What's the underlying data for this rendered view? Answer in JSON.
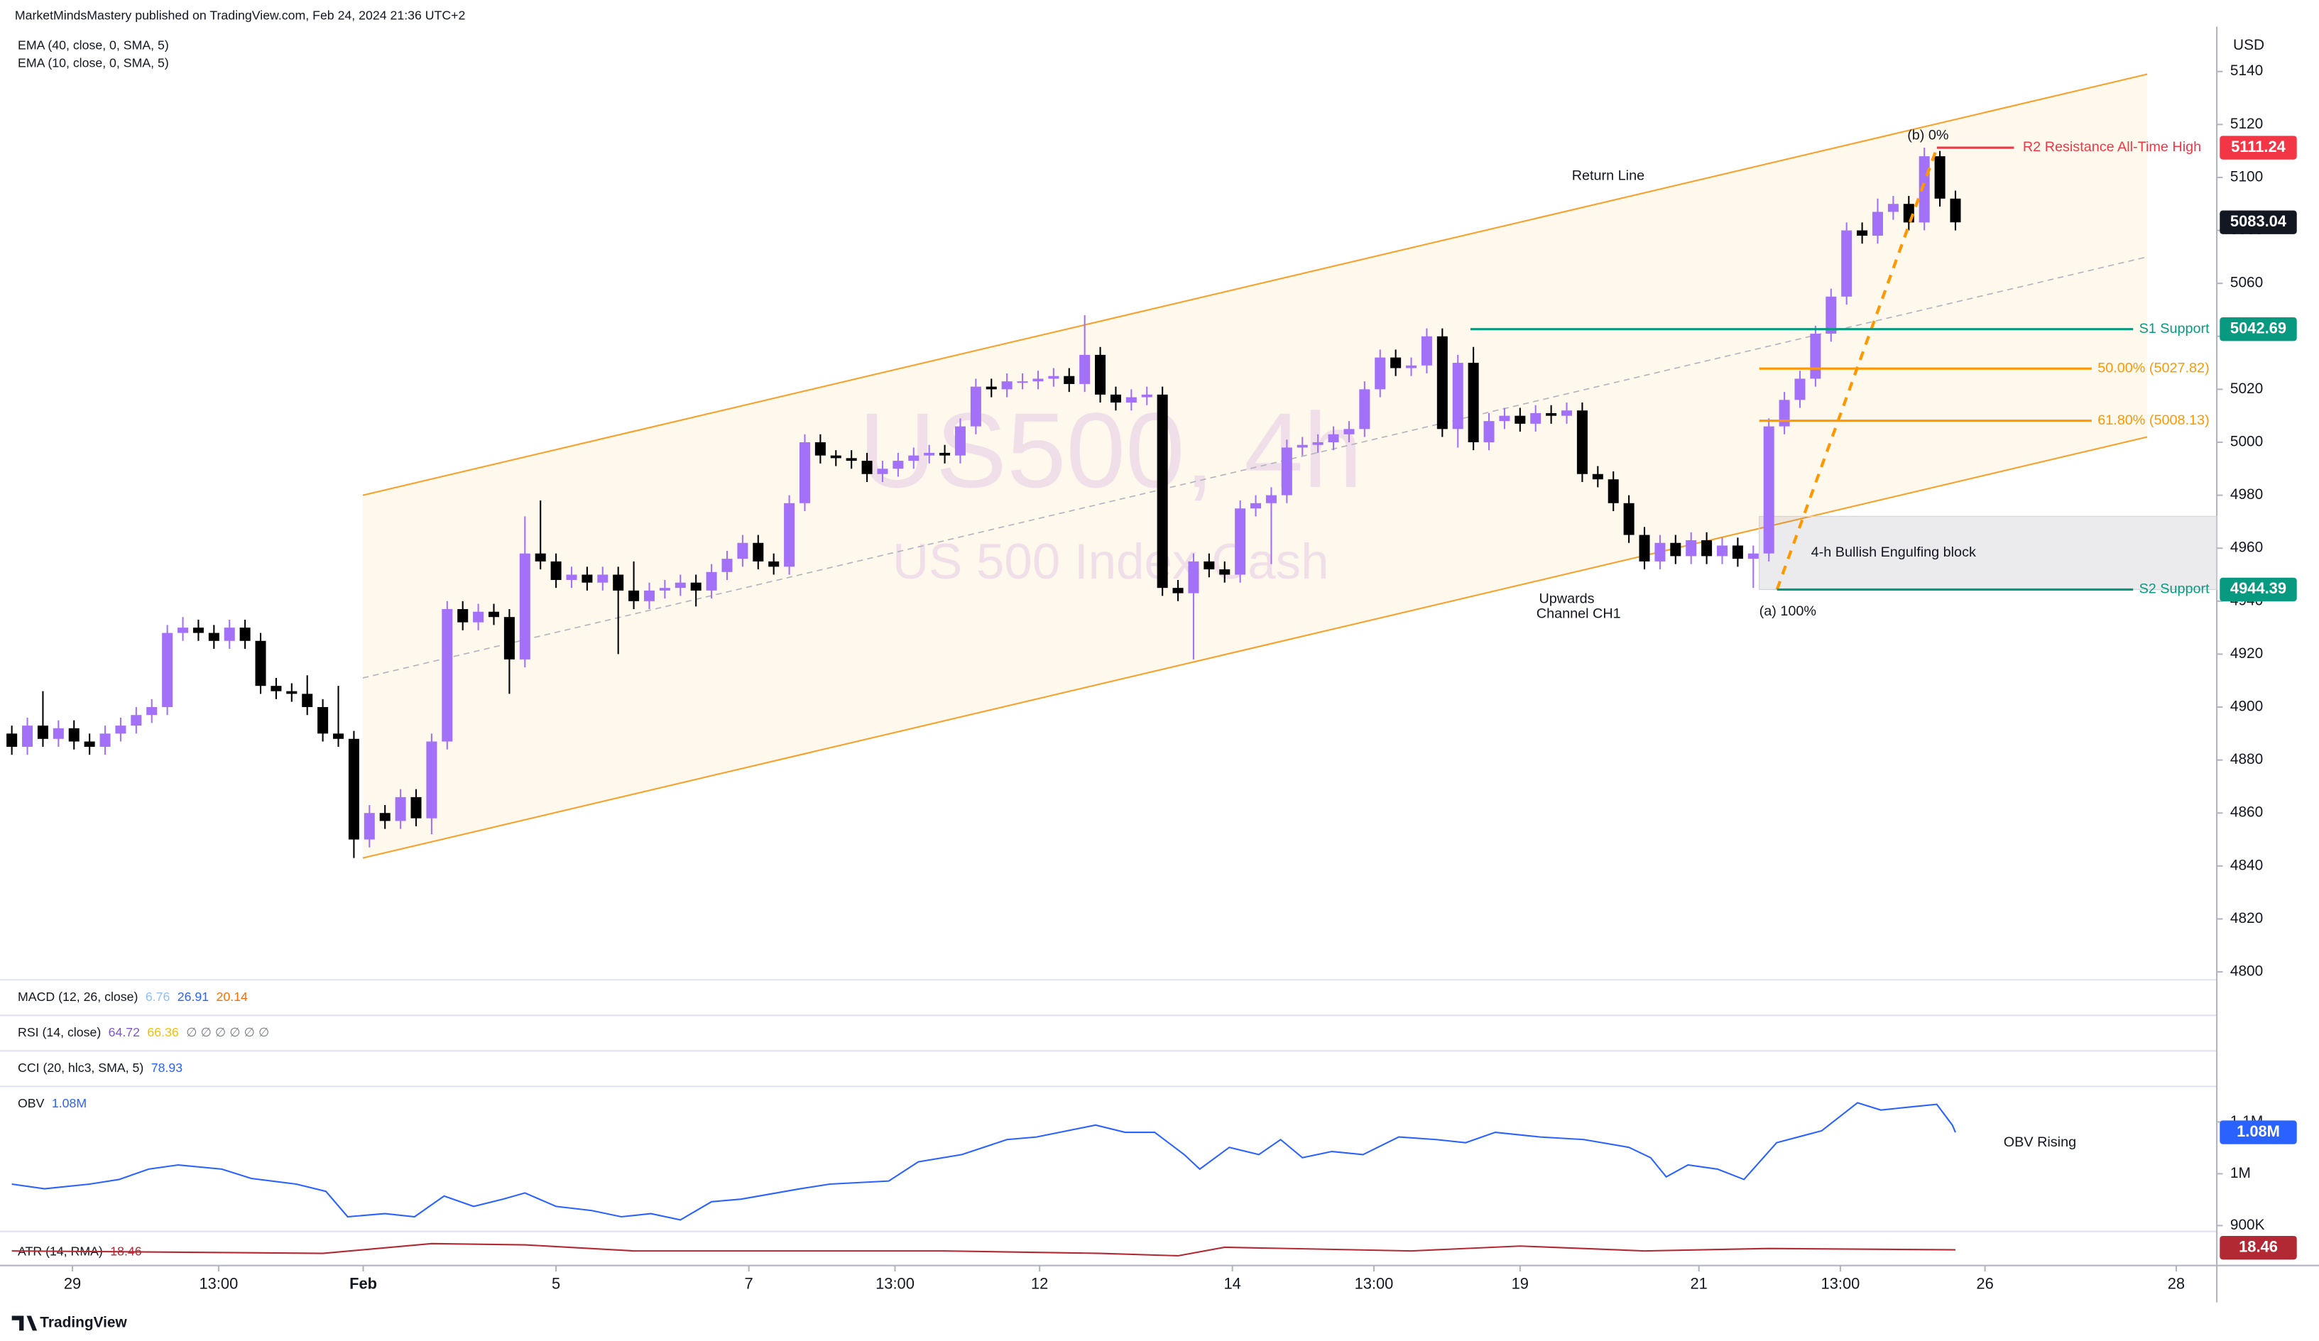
{
  "header": {
    "publisher": "MarketMindsMastery published on TradingView.com, Feb 24, 2024 21:36 UTC+2",
    "indicators": [
      "EMA (40, close, 0, SMA, 5)",
      "EMA (10, close, 0, SMA, 5)"
    ]
  },
  "chart_data": {
    "type": "candlestick",
    "title": "US500, 4h",
    "subtitle": "US 500 Index Cash",
    "currency": "USD",
    "grid": false,
    "up_color": "#a371f7",
    "down_color": "#000000",
    "xlim": [
      -0.76,
      141.81
    ],
    "xticks": [
      {
        "value": 3.9,
        "label": "29"
      },
      {
        "value": 13.3,
        "label": "13:00"
      },
      {
        "value": 22.6,
        "label": "Feb"
      },
      {
        "value": 35,
        "label": "5"
      },
      {
        "value": 47.4,
        "label": "7"
      },
      {
        "value": 56.8,
        "label": "13:00"
      },
      {
        "value": 66.1,
        "label": "12"
      },
      {
        "value": 78.5,
        "label": "14"
      },
      {
        "value": 87.6,
        "label": "13:00"
      },
      {
        "value": 97,
        "label": "19"
      },
      {
        "value": 108.5,
        "label": "21"
      },
      {
        "value": 117.6,
        "label": "13:00"
      },
      {
        "value": 126.9,
        "label": "26"
      },
      {
        "value": 139.2,
        "label": "28"
      }
    ],
    "ylim": [
      4797,
      5167
    ],
    "yticks": [
      4800,
      4820,
      4840,
      4860,
      4880,
      4900,
      4920,
      4940,
      4960,
      4980,
      5000,
      5020,
      5040,
      5060,
      5080,
      5100,
      5120,
      5140
    ],
    "open": [
      4890,
      4885,
      4893,
      4888,
      4892,
      4887,
      4885,
      4890,
      4893,
      4897,
      4900,
      4928,
      4930,
      4928,
      4925,
      4930,
      4925,
      4908,
      4906,
      4905,
      4900,
      4890,
      4888,
      4850,
      4860,
      4857,
      4866,
      4858,
      4887,
      4937,
      4932,
      4936,
      4934,
      4918,
      4958,
      4955,
      4948,
      4950,
      4947,
      4950,
      4944,
      4940,
      4944,
      4945,
      4947,
      4944,
      4951,
      4956,
      4962,
      4955,
      4953,
      4977,
      5000,
      4995,
      4994,
      4993,
      4988,
      4990,
      4993,
      4995,
      4996,
      4995,
      5006,
      5021,
      5020,
      5023,
      5023,
      5024,
      5025,
      5022,
      5033,
      5018,
      5015,
      5017,
      5018,
      4945,
      4943,
      4955,
      4952,
      4950,
      4975,
      4977,
      4980,
      4998,
      4999,
      5000,
      5003,
      5005,
      5020,
      5032,
      5028,
      5029,
      5040,
      5005,
      5030,
      5000,
      5008,
      5010,
      5007,
      5011,
      5010,
      5012,
      4988,
      4986,
      4977,
      4965,
      4955,
      4962,
      4957,
      4963,
      4957,
      4961,
      4956,
      4958,
      5006,
      5016,
      5024,
      5041,
      5055,
      5080,
      5078,
      5087,
      5090,
      5083,
      5108,
      5092
    ],
    "high": [
      4893,
      4896,
      4906,
      4895,
      4895,
      4890,
      4893,
      4896,
      4900,
      4903,
      4931,
      4934,
      4933,
      4931,
      4933,
      4933,
      4928,
      4911,
      4909,
      4912,
      4903,
      4908,
      4891,
      4863,
      4863,
      4869,
      4869,
      4890,
      4940,
      4940,
      4939,
      4939,
      4937,
      4972,
      4978,
      4958,
      4953,
      4953,
      4953,
      4953,
      4955,
      4947,
      4948,
      4950,
      4950,
      4954,
      4959,
      4965,
      4965,
      4958,
      4980,
      5003,
      5003,
      4997,
      4997,
      4996,
      4993,
      4996,
      4998,
      4999,
      4999,
      5009,
      5024,
      5024,
      5026,
      5026,
      5027,
      5028,
      5028,
      5048,
      5036,
      5021,
      5020,
      5021,
      5021,
      4948,
      4958,
      4958,
      4955,
      4978,
      4980,
      4983,
      5001,
      5002,
      5003,
      5006,
      5008,
      5023,
      5035,
      5035,
      5032,
      5043,
      5043,
      5033,
      5036,
      5011,
      5013,
      5013,
      5014,
      5014,
      5015,
      5015,
      4991,
      4989,
      4980,
      4968,
      4965,
      4965,
      4966,
      4966,
      4964,
      4964,
      4961,
      5009,
      5019,
      5027,
      5044,
      5058,
      5083,
      5083,
      5092,
      5093,
      5093,
      5111.24,
      5110,
      5095
    ],
    "low": [
      4882,
      4882,
      4885,
      4885,
      4884,
      4882,
      4882,
      4887,
      4890,
      4894,
      4897,
      4925,
      4925,
      4922,
      4922,
      4922,
      4905,
      4903,
      4902,
      4897,
      4887,
      4885,
      4843,
      4847,
      4854,
      4854,
      4855,
      4852,
      4884,
      4929,
      4929,
      4931,
      4905,
      4915,
      4952,
      4945,
      4945,
      4944,
      4944,
      4920,
      4937,
      4937,
      4941,
      4942,
      4938,
      4941,
      4948,
      4953,
      4952,
      4950,
      4950,
      4974,
      4992,
      4991,
      4990,
      4985,
      4985,
      4987,
      4990,
      4992,
      4992,
      4992,
      5003,
      5017,
      5017,
      5020,
      5020,
      5021,
      5019,
      5019,
      5015,
      5012,
      5012,
      5014,
      4942,
      4940,
      4918,
      4949,
      4947,
      4947,
      4972,
      4954,
      4977,
      4995,
      4996,
      4997,
      5000,
      5002,
      5017,
      5025,
      5025,
      5026,
      5002,
      4998,
      4997,
      4997,
      5005,
      5004,
      5004,
      5007,
      5007,
      4985,
      4983,
      4974,
      4962,
      4952,
      4952,
      4954,
      4954,
      4954,
      4954,
      4953,
      4945,
      4955,
      5003,
      5013,
      5021,
      5038,
      5052,
      5075,
      5075,
      5084,
      5080,
      5080,
      5089,
      5080
    ],
    "close": [
      4885,
      4893,
      4888,
      4892,
      4887,
      4885,
      4890,
      4893,
      4897,
      4900,
      4928,
      4930,
      4928,
      4925,
      4930,
      4925,
      4908,
      4906,
      4905,
      4900,
      4890,
      4888,
      4850,
      4860,
      4857,
      4866,
      4858,
      4887,
      4937,
      4932,
      4936,
      4934,
      4918,
      4958,
      4955,
      4948,
      4950,
      4947,
      4950,
      4944,
      4940,
      4944,
      4945,
      4947,
      4944,
      4951,
      4956,
      4962,
      4955,
      4953,
      4977,
      5000,
      4995,
      4994,
      4993,
      4988,
      4990,
      4993,
      4995,
      4996,
      4995,
      5006,
      5021,
      5020,
      5023,
      5023,
      5024,
      5025,
      5022,
      5033,
      5018,
      5015,
      5017,
      5018,
      4945,
      4943,
      4955,
      4952,
      4950,
      4975,
      4977,
      4980,
      4998,
      4999,
      5000,
      5003,
      5005,
      5020,
      5032,
      5028,
      5029,
      5040,
      5005,
      5030,
      5000,
      5008,
      5010,
      5007,
      5011,
      5010,
      5012,
      4988,
      4986,
      4977,
      4965,
      4955,
      4962,
      4957,
      4963,
      4957,
      4961,
      4956,
      4958,
      5006,
      5016,
      5024,
      5041,
      5055,
      5080,
      5078,
      5087,
      5090,
      5083,
      5108,
      5092,
      5083.04
    ],
    "channel": {
      "upper": [
        4980,
        5139
      ],
      "middle": [
        4911,
        5070
      ],
      "lower": [
        4843,
        5002
      ],
      "color": "#f7a12b"
    },
    "levels": [
      {
        "name": "R2 Resistance All-Time High",
        "value": 5111.24,
        "color": "#f23645"
      },
      {
        "name": "S1 Support",
        "value": 5042.69,
        "color": "#089981"
      },
      {
        "name": "50.00% (5027.82)",
        "value": 5027.82,
        "color": "#ff9800"
      },
      {
        "name": "61.80% (5008.13)",
        "value": 5008.13,
        "color": "#ff9800"
      },
      {
        "name": "S2 Support",
        "value": 4944.39,
        "color": "#089981"
      }
    ],
    "block": {
      "name": "4-h Bullish Engulfing block",
      "top": 4972,
      "bottom": 4944.39
    },
    "fib": {
      "from": 4944.39,
      "to": 5111.24,
      "from_label": "(a) 100%",
      "to_label": "(b) 0%",
      "color": "#ff9800"
    },
    "annotations": {
      "return_line": "Return Line",
      "channel": [
        "Upwards",
        "Channel CH1"
      ]
    },
    "panes": [
      {
        "name": "MACD (12, 26, close)",
        "values": [
          6.76,
          26.91,
          20.14
        ],
        "colors": [
          "#90bff9",
          "#2962ff",
          "#ff6d00"
        ]
      },
      {
        "name": "RSI (14, close)",
        "values": [
          64.72,
          66.36
        ],
        "colors": [
          "#7e57c2",
          "#f5c000"
        ],
        "extra": "∅ ∅ ∅ ∅ ∅ ∅"
      },
      {
        "name": "CCI (20, hlc3, SMA, 5)",
        "values": [
          78.93
        ],
        "colors": [
          "#2962ff"
        ]
      }
    ],
    "obv": {
      "name": "OBV",
      "color": "#2962ff",
      "annotation": "OBV Rising",
      "legend_value": {
        "value": 1080000,
        "label": "1.08M"
      },
      "ylim": [
        888600,
        1168600
      ],
      "yticks": [
        {
          "value": 1100000,
          "label": "1.1M"
        },
        {
          "value": 1000000,
          "label": "1M"
        },
        {
          "value": 900000,
          "label": "900K"
        }
      ],
      "x": [
        0,
        2.1,
        5,
        6.9,
        8.8,
        10.7,
        13.5,
        15.4,
        18.3,
        20.2,
        21.6,
        24,
        25.9,
        27.8,
        29.7,
        31.6,
        33,
        35,
        37.3,
        39.2,
        41.1,
        43,
        45,
        46.9,
        50.7,
        52.6,
        56.4,
        58.3,
        61.1,
        64,
        65.9,
        69.7,
        71.6,
        73.5,
        75.4,
        76.4,
        78.3,
        80.2,
        81.6,
        83,
        84.9,
        86.9,
        89.2,
        91.6,
        93.5,
        95.4,
        98.3,
        101.1,
        104,
        105.4,
        106.4,
        107.8,
        109.7,
        111.4,
        113.5,
        116.4,
        118.7,
        120.2,
        122.1,
        123.8,
        124.8,
        125
      ],
      "values": [
        980000,
        971000,
        980000,
        989000,
        1009000,
        1017000,
        1009000,
        991000,
        980000,
        966000,
        917000,
        923000,
        917000,
        957000,
        937000,
        951000,
        963000,
        937000,
        929000,
        917000,
        923000,
        911000,
        946000,
        951000,
        971000,
        980000,
        986000,
        1023000,
        1037000,
        1066000,
        1071000,
        1094000,
        1080000,
        1080000,
        1037000,
        1009000,
        1051000,
        1037000,
        1066000,
        1031000,
        1043000,
        1037000,
        1071000,
        1066000,
        1060000,
        1080000,
        1071000,
        1066000,
        1051000,
        1031000,
        994000,
        1017000,
        1009000,
        989000,
        1060000,
        1083000,
        1137000,
        1123000,
        1129000,
        1134000,
        1094000,
        1080000
      ]
    },
    "atr": {
      "name": "ATR (14, RMA)",
      "color": "#b22833",
      "legend_value": 18.46,
      "ylim": [
        12,
        26
      ],
      "x": [
        0,
        20,
        27,
        33,
        40,
        60,
        70,
        75,
        78,
        90,
        97,
        105,
        113,
        125
      ],
      "values": [
        18,
        17,
        21,
        20.5,
        18,
        18,
        17,
        16,
        19.5,
        18,
        20,
        18,
        19,
        18.46
      ]
    }
  },
  "footer": "TradingView"
}
